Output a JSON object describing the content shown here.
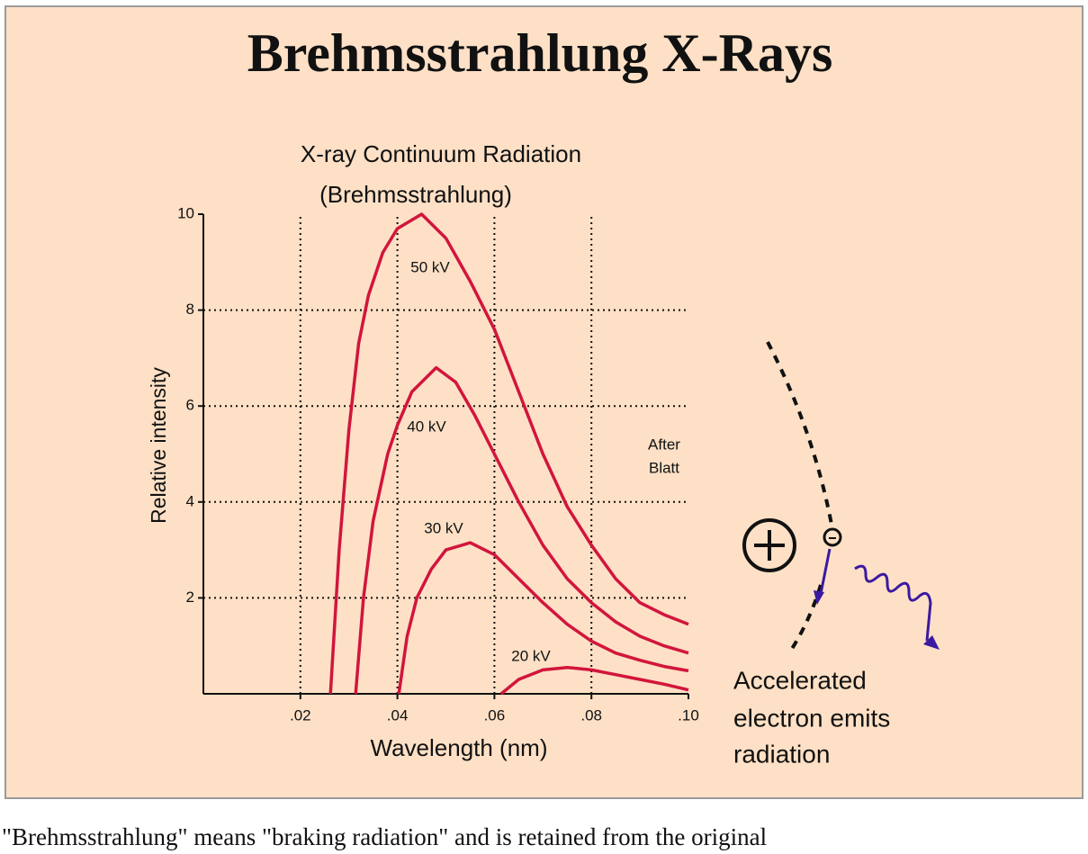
{
  "header": {
    "title": "Brehmsstrahlung X-Rays"
  },
  "chart_data": {
    "type": "line",
    "title": "X-ray Continuum Radiation",
    "subtitle": "(Brehmsstrahlung)",
    "xlabel": "Wavelength (nm)",
    "ylabel": "Relative intensity",
    "annotation": [
      "After",
      "Blatt"
    ],
    "xlim": [
      0,
      0.1
    ],
    "ylim": [
      0,
      10
    ],
    "xticks": [
      {
        "value": 0.02,
        "label": ".02"
      },
      {
        "value": 0.04,
        "label": ".04"
      },
      {
        "value": 0.06,
        "label": ".06"
      },
      {
        "value": 0.08,
        "label": ".08"
      },
      {
        "value": 0.1,
        "label": ".10"
      }
    ],
    "yticks": [
      2,
      4,
      6,
      8,
      10
    ],
    "grid": true,
    "series": [
      {
        "name": "50 kV",
        "color": "#d2153c",
        "x": [
          0.0262,
          0.028,
          0.03,
          0.032,
          0.034,
          0.037,
          0.04,
          0.045,
          0.05,
          0.055,
          0.06,
          0.065,
          0.07,
          0.075,
          0.08,
          0.085,
          0.09,
          0.095,
          0.1
        ],
        "values": [
          0,
          3,
          5.5,
          7.3,
          8.3,
          9.2,
          9.7,
          10,
          9.5,
          8.6,
          7.6,
          6.3,
          5.0,
          3.9,
          3.1,
          2.4,
          1.9,
          1.65,
          1.45
        ]
      },
      {
        "name": "40 kV",
        "color": "#d2153c",
        "x": [
          0.0314,
          0.033,
          0.035,
          0.038,
          0.04,
          0.043,
          0.048,
          0.052,
          0.056,
          0.06,
          0.065,
          0.07,
          0.075,
          0.08,
          0.085,
          0.09,
          0.095,
          0.1
        ],
        "values": [
          0,
          2,
          3.6,
          5.0,
          5.6,
          6.3,
          6.8,
          6.5,
          5.8,
          5.0,
          4.0,
          3.1,
          2.4,
          1.9,
          1.5,
          1.2,
          1.0,
          0.85
        ]
      },
      {
        "name": "30 kV",
        "color": "#d2153c",
        "x": [
          0.0403,
          0.042,
          0.044,
          0.047,
          0.05,
          0.055,
          0.06,
          0.065,
          0.07,
          0.075,
          0.08,
          0.085,
          0.09,
          0.095,
          0.1
        ],
        "values": [
          0,
          1.2,
          2.0,
          2.6,
          3.0,
          3.15,
          2.9,
          2.4,
          1.9,
          1.45,
          1.1,
          0.85,
          0.7,
          0.57,
          0.48
        ]
      },
      {
        "name": "20 kV",
        "color": "#d2153c",
        "x": [
          0.0614,
          0.065,
          0.07,
          0.075,
          0.08,
          0.085,
          0.09,
          0.095,
          0.1
        ],
        "values": [
          0,
          0.3,
          0.5,
          0.55,
          0.5,
          0.4,
          0.3,
          0.2,
          0.08
        ]
      }
    ]
  },
  "diagram": {
    "caption": [
      "Accelerated",
      "electron emits",
      "radiation"
    ]
  },
  "footer": {
    "text": "\"Brehmsstrahlung\" means \"braking radiation\" and is retained from the original"
  }
}
